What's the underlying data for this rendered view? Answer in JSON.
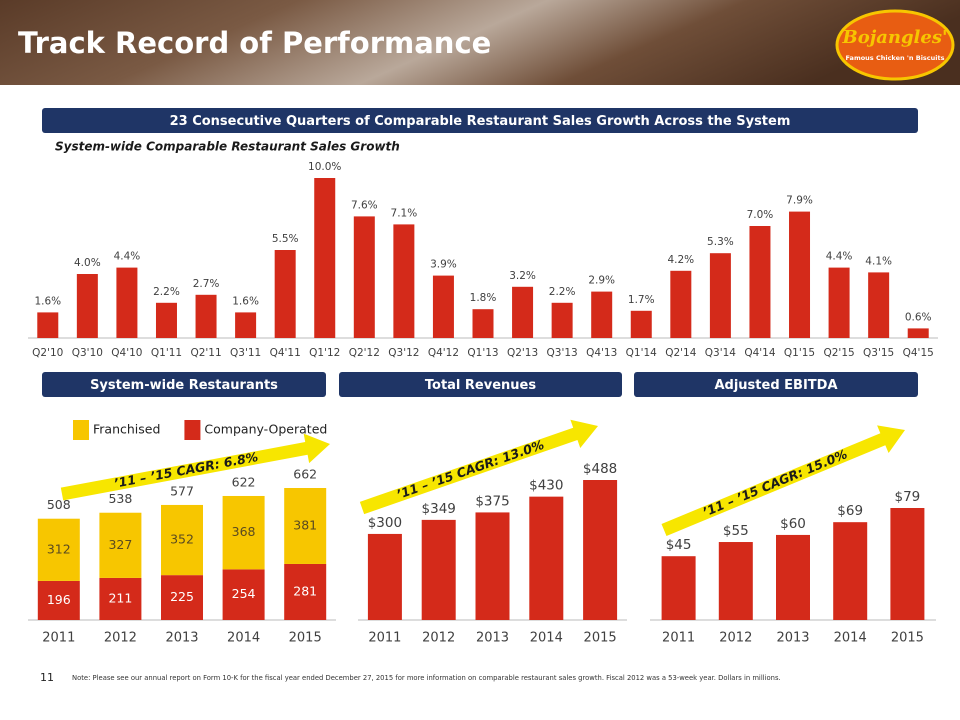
{
  "header": {
    "title": "Track Record of Performance",
    "logo": {
      "name": "Bojangles'",
      "tagline": "Famous Chicken 'n Biscuits"
    }
  },
  "chart_data": [
    {
      "type": "bar",
      "banner": "23 Consecutive Quarters of Comparable Restaurant Sales Growth Across the System",
      "title": "System-wide Comparable Restaurant Sales Growth",
      "categories": [
        "Q2'10",
        "Q3'10",
        "Q4'10",
        "Q1'11",
        "Q2'11",
        "Q3'11",
        "Q4'11",
        "Q1'12",
        "Q2'12",
        "Q3'12",
        "Q4'12",
        "Q1'13",
        "Q2'13",
        "Q3'13",
        "Q4'13",
        "Q1'14",
        "Q2'14",
        "Q3'14",
        "Q4'14",
        "Q1'15",
        "Q2'15",
        "Q3'15",
        "Q4'15"
      ],
      "values": [
        1.6,
        4.0,
        4.4,
        2.2,
        2.7,
        1.6,
        5.5,
        10.0,
        7.6,
        7.1,
        3.9,
        1.8,
        3.2,
        2.2,
        2.9,
        1.7,
        4.2,
        5.3,
        7.0,
        7.9,
        4.4,
        4.1,
        0.6
      ],
      "value_labels": [
        "1.6%",
        "4.0%",
        "4.4%",
        "2.2%",
        "2.7%",
        "1.6%",
        "5.5%",
        "10.0%",
        "7.6%",
        "7.1%",
        "3.9%",
        "1.8%",
        "3.2%",
        "2.2%",
        "2.9%",
        "1.7%",
        "4.2%",
        "5.3%",
        "7.0%",
        "7.9%",
        "4.4%",
        "4.1%",
        "0.6%"
      ],
      "color": "#d42a1a"
    },
    {
      "type": "stacked-bar",
      "banner": "System-wide Restaurants",
      "annotation": "’11 – ’15 CAGR: 6.8%",
      "categories": [
        "2011",
        "2012",
        "2013",
        "2014",
        "2015"
      ],
      "series": [
        {
          "name": "Company-Operated",
          "color": "#d42a1a",
          "values": [
            196,
            211,
            225,
            254,
            281
          ]
        },
        {
          "name": "Franchised",
          "color": "#f7c600",
          "values": [
            312,
            327,
            352,
            368,
            381
          ]
        }
      ],
      "totals": [
        508,
        538,
        577,
        622,
        662
      ]
    },
    {
      "type": "bar",
      "banner": "Total Revenues",
      "annotation": "’11 – ’15 CAGR: 13.0%",
      "categories": [
        "2011",
        "2012",
        "2013",
        "2014",
        "2015"
      ],
      "values": [
        300,
        349,
        375,
        430,
        488
      ],
      "value_labels": [
        "$300",
        "$349",
        "$375",
        "$430",
        "$488"
      ],
      "color": "#d42a1a"
    },
    {
      "type": "bar",
      "banner": "Adjusted EBITDA",
      "annotation": "’11 – ’15 CAGR: 15.0%",
      "categories": [
        "2011",
        "2012",
        "2013",
        "2014",
        "2015"
      ],
      "values": [
        45,
        55,
        60,
        69,
        79
      ],
      "value_labels": [
        "$45",
        "$55",
        "$60",
        "$69",
        "$79"
      ],
      "color": "#d42a1a"
    }
  ],
  "page_number": "11",
  "note": "Note: Please see our annual report on Form 10-K for the fiscal year ended December 27, 2015 for more information on comparable restaurant sales growth. Fiscal 2012 was a 53-week year. Dollars in millions."
}
